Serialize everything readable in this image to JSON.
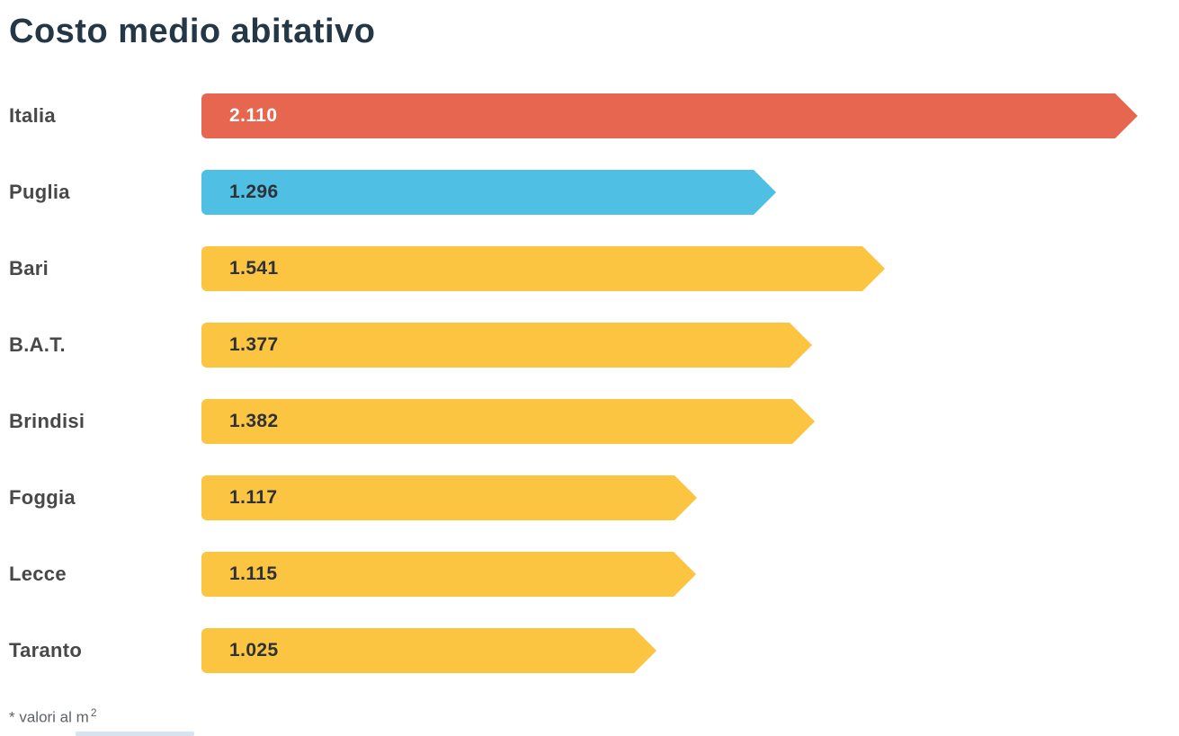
{
  "header": {
    "title": "Costo medio abitativo",
    "title_color": "#243746"
  },
  "footnote": {
    "text": "* valori al m",
    "sup": "2",
    "color": "#5f6368"
  },
  "chart_data": {
    "type": "bar",
    "orientation": "horizontal",
    "title": "Costo medio abitativo",
    "unit_note": "valori al m2",
    "categories": [
      "Italia",
      "Puglia",
      "Bari",
      "B.A.T.",
      "Brindisi",
      "Foggia",
      "Lecce",
      "Taranto"
    ],
    "values": [
      2110,
      1296,
      1541,
      1377,
      1382,
      1117,
      1115,
      1025
    ],
    "values_formatted": [
      "2.110",
      "1.296",
      "1.541",
      "1.377",
      "1.382",
      "1.117",
      "1.115",
      "1.025"
    ],
    "bar_colors": [
      "#e7664f",
      "#4fbfe3",
      "#fbc441",
      "#fbc441",
      "#fbc441",
      "#fbc441",
      "#fbc441",
      "#fbc441"
    ],
    "value_text_colors": [
      "#ffffff",
      "#2e3138",
      "#2e3138",
      "#2e3138",
      "#2e3138",
      "#2e3138",
      "#2e3138",
      "#2e3138"
    ],
    "label_color": "#484848",
    "xlim": [
      0,
      2110
    ],
    "grid": false,
    "legend": false
  }
}
